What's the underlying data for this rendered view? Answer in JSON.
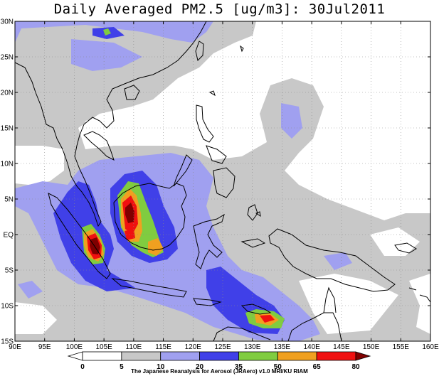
{
  "title": "Daily Averaged PM2.5 [ug/m3]: 30Jul2011",
  "map": {
    "lon_min": 90,
    "lon_max": 160,
    "lat_min": -15,
    "lat_max": 30,
    "lon_ticks": [
      {
        "value": 90,
        "label": "90E"
      },
      {
        "value": 95,
        "label": "95E"
      },
      {
        "value": 100,
        "label": "100E"
      },
      {
        "value": 105,
        "label": "105E"
      },
      {
        "value": 110,
        "label": "110E"
      },
      {
        "value": 115,
        "label": "115E"
      },
      {
        "value": 120,
        "label": "120E"
      },
      {
        "value": 125,
        "label": "125E"
      },
      {
        "value": 130,
        "label": "130E"
      },
      {
        "value": 135,
        "label": "135E"
      },
      {
        "value": 140,
        "label": "140E"
      },
      {
        "value": 145,
        "label": "145E"
      },
      {
        "value": 150,
        "label": "150E"
      },
      {
        "value": 155,
        "label": "155E"
      },
      {
        "value": 160,
        "label": "160E"
      }
    ],
    "lat_ticks": [
      {
        "value": 30,
        "label": "30N"
      },
      {
        "value": 25,
        "label": "25N"
      },
      {
        "value": 20,
        "label": "20N"
      },
      {
        "value": 15,
        "label": "15N"
      },
      {
        "value": 10,
        "label": "10N"
      },
      {
        "value": 5,
        "label": "5N"
      },
      {
        "value": 0,
        "label": "EQ"
      },
      {
        "value": -5,
        "label": "5S"
      },
      {
        "value": -10,
        "label": "10S"
      },
      {
        "value": -15,
        "label": "15S"
      }
    ],
    "grid": true
  },
  "colorbar": {
    "levels": [
      "0",
      "5",
      "10",
      "20",
      "35",
      "50",
      "65",
      "80"
    ],
    "colors": [
      "#ffffff",
      "#ffffff",
      "#c8c8c8",
      "#a0a0f0",
      "#4040e8",
      "#80cc40",
      "#f0a020",
      "#f01010",
      "#800000"
    ]
  },
  "credit": "The Japanese Reanalysis for Aerosol (JRAero) v1.0 MRI/KU RIAM",
  "colors": {
    "grey": "#c8c8c8",
    "light_blue": "#a0a0f0",
    "blue": "#4040e8",
    "green": "#80cc40",
    "orange": "#f0a020",
    "red": "#f01010",
    "dark_red": "#800000"
  }
}
